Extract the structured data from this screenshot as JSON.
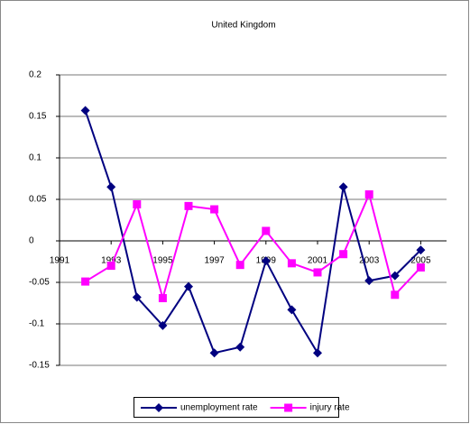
{
  "chart_data": {
    "type": "line",
    "title": "United Kingdom",
    "x": [
      1992,
      1993,
      1994,
      1995,
      1996,
      1997,
      1998,
      1999,
      2000,
      2001,
      2002,
      2003,
      2004,
      2005
    ],
    "xlim": [
      1991,
      2006
    ],
    "xticks": [
      1991,
      1993,
      1995,
      1997,
      1999,
      2001,
      2003,
      2005
    ],
    "ylim": [
      -0.15,
      0.2
    ],
    "yticks": [
      0.2,
      0.15,
      0.1,
      0.05,
      0,
      -0.05,
      -0.1,
      -0.15
    ],
    "grid": true,
    "legend": "bottom",
    "series": [
      {
        "name": "unemployment rate",
        "color": "#000080",
        "marker": "diamond",
        "values": [
          0.157,
          0.065,
          -0.068,
          -0.102,
          -0.055,
          -0.135,
          -0.128,
          -0.024,
          -0.083,
          -0.135,
          0.065,
          -0.048,
          -0.042,
          -0.011
        ]
      },
      {
        "name": "injury rate",
        "color": "#ff00ff",
        "marker": "square",
        "values": [
          -0.049,
          -0.03,
          0.044,
          -0.069,
          0.042,
          0.038,
          -0.029,
          0.012,
          -0.027,
          -0.038,
          -0.016,
          0.056,
          -0.065,
          -0.032
        ]
      }
    ]
  }
}
